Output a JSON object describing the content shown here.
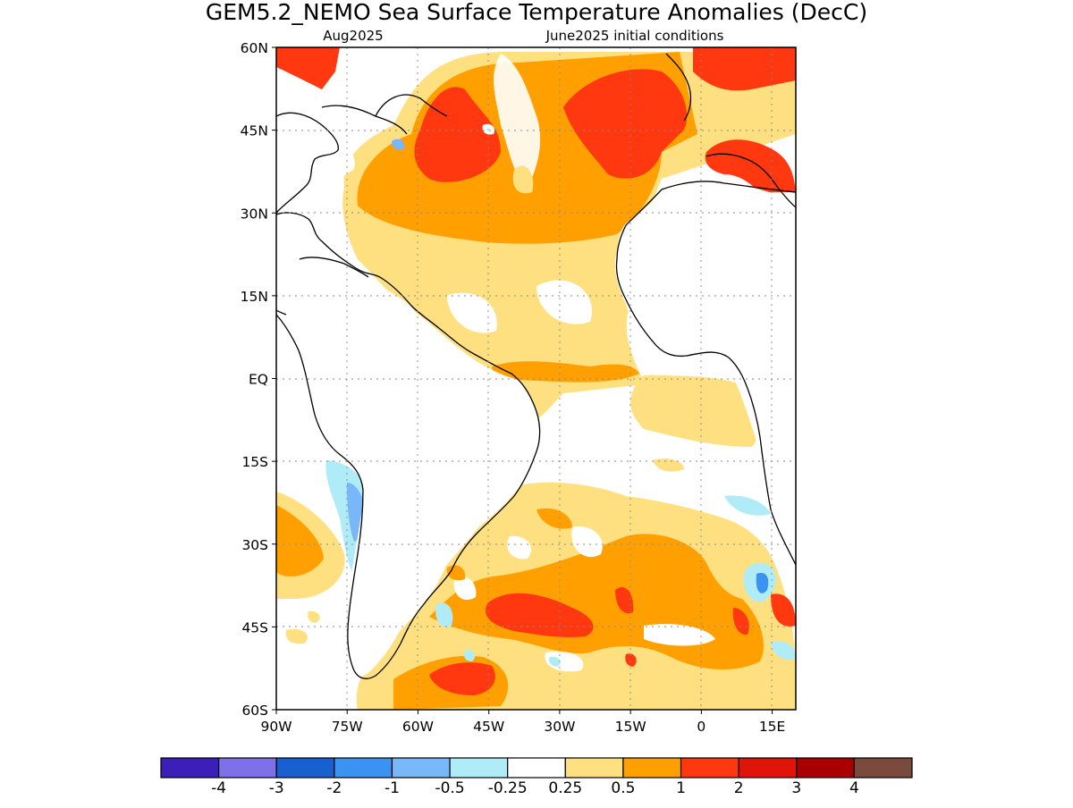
{
  "header": {
    "title": "GEM5.2_NEMO Sea Surface Temperature Anomalies (DecC)",
    "valid_month": "Aug2025",
    "init_label": "June2025 initial conditions"
  },
  "map": {
    "lon_range": [
      -90,
      20
    ],
    "lat_range": [
      -60,
      60
    ],
    "lon_ticks": [
      {
        "value": -90,
        "label": "90W"
      },
      {
        "value": -75,
        "label": "75W"
      },
      {
        "value": -60,
        "label": "60W"
      },
      {
        "value": -45,
        "label": "45W"
      },
      {
        "value": -30,
        "label": "30W"
      },
      {
        "value": -15,
        "label": "15W"
      },
      {
        "value": 0,
        "label": "0"
      },
      {
        "value": 15,
        "label": "15E"
      }
    ],
    "lat_ticks": [
      {
        "value": 60,
        "label": "60N"
      },
      {
        "value": 45,
        "label": "45N"
      },
      {
        "value": 30,
        "label": "30N"
      },
      {
        "value": 15,
        "label": "15N"
      },
      {
        "value": 0,
        "label": "EQ"
      },
      {
        "value": -15,
        "label": "15S"
      },
      {
        "value": -30,
        "label": "30S"
      },
      {
        "value": -45,
        "label": "45S"
      },
      {
        "value": -60,
        "label": "60S"
      }
    ],
    "grid": "dotted"
  },
  "colorbar": {
    "colors": [
      "#3b1fb8",
      "#7d70e8",
      "#1860d0",
      "#3c92f0",
      "#78b8f8",
      "#b0ecf8",
      "#ffffff",
      "#ffe080",
      "#ffa000",
      "#ff3810",
      "#e01408",
      "#a80000",
      "#7a4a3c"
    ],
    "labels": [
      "-4",
      "-3",
      "-2",
      "-1",
      "-0.5",
      "-0.25",
      "0.25",
      "0.5",
      "1",
      "2",
      "3",
      "4"
    ]
  }
}
